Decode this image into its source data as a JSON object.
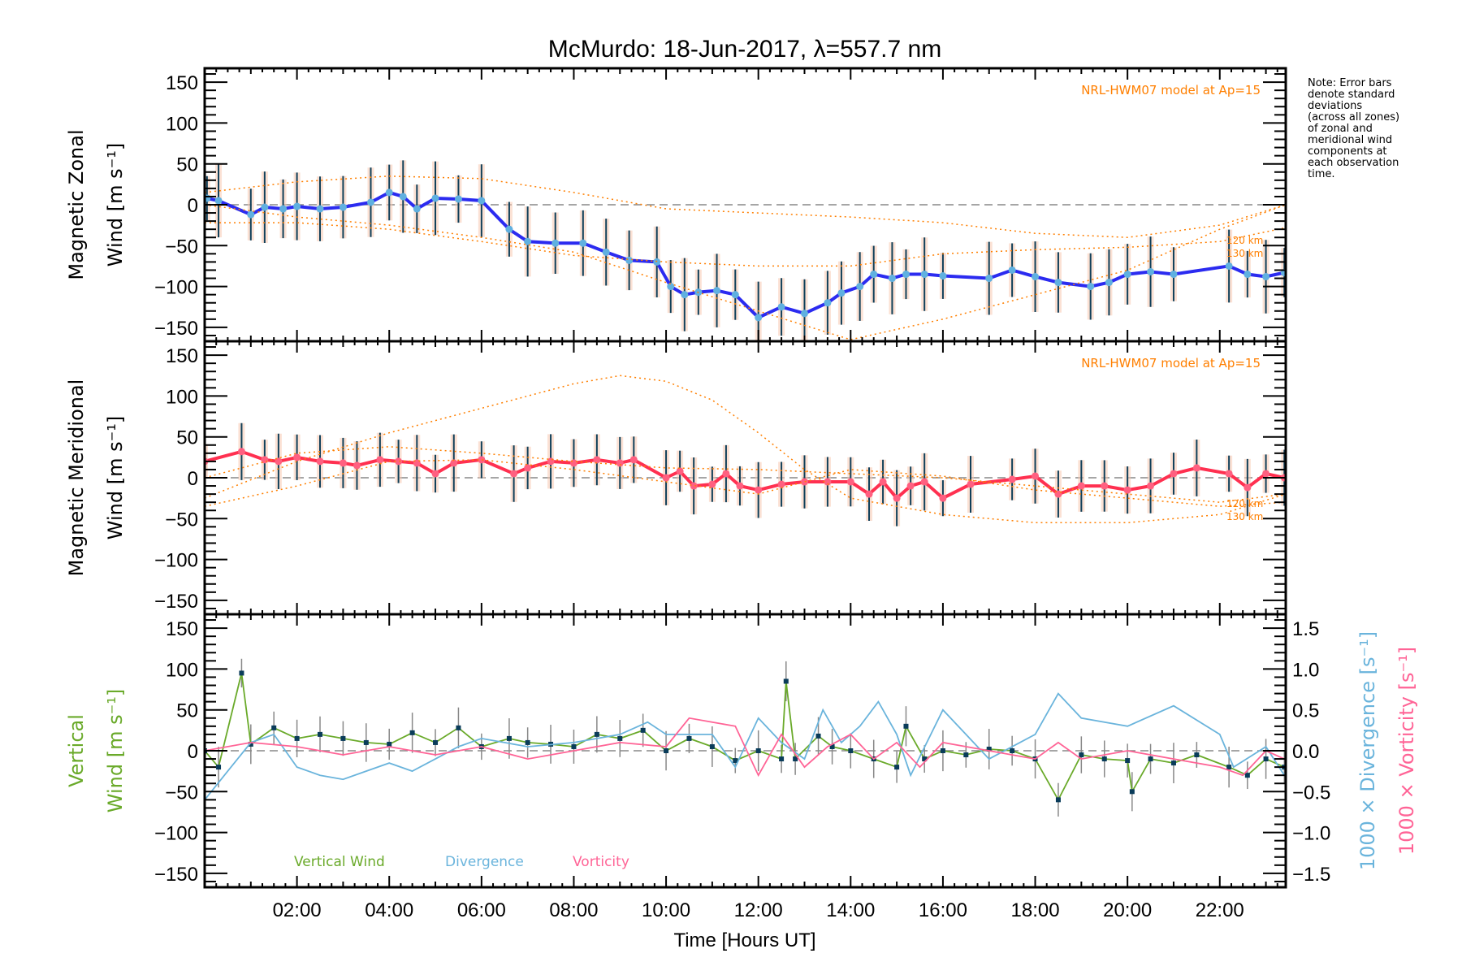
{
  "chart_data": {
    "type": "line",
    "title": "McMurdo: 18-Jun-2017, λ=557.7 nm",
    "xlabel": "Time [Hours UT]",
    "xlim": [
      0,
      23.43
    ],
    "x_ticks": [
      2,
      4,
      6,
      8,
      10,
      12,
      14,
      16,
      18,
      20,
      22
    ],
    "x_tick_labels": [
      "02:00",
      "04:00",
      "06:00",
      "08:00",
      "10:00",
      "12:00",
      "14:00",
      "16:00",
      "18:00",
      "20:00",
      "22:00"
    ],
    "note_lines": [
      "Note: Error bars",
      "denote standard",
      "deviations",
      "(across all zones)",
      "of zonal and",
      "meridional wind",
      "components at",
      "each observation",
      "time."
    ],
    "panels": [
      {
        "name": "zonal",
        "ylabel_line1": "Magnetic Zonal",
        "ylabel_line2": "Wind [m s⁻¹]",
        "ylim": [
          -167,
          167
        ],
        "y_ticks": [
          150,
          100,
          50,
          0,
          -50,
          -100,
          -150
        ],
        "y_tick_labels": [
          "150",
          "100",
          "50",
          "0",
          "−50",
          "−100",
          "−150"
        ],
        "model_label": "NRL-HWM07 model at Ap=15",
        "model_altitudes": [
          "120 km",
          "130 km"
        ],
        "series": [
          {
            "name": "Magnetic Zonal Wind",
            "color": "#2b2bf0",
            "x": [
              0.05,
              0.3,
              1.0,
              1.3,
              1.7,
              2.0,
              2.5,
              3.0,
              3.6,
              4.0,
              4.3,
              4.6,
              5.0,
              5.5,
              6.0,
              6.6,
              7.0,
              7.6,
              8.2,
              8.7,
              9.2,
              9.8,
              10.1,
              10.4,
              10.7,
              11.1,
              11.5,
              12.0,
              12.5,
              13.0,
              13.5,
              13.8,
              14.2,
              14.5,
              14.9,
              15.2,
              15.6,
              16.0,
              17.0,
              17.5,
              18.0,
              18.5,
              19.2,
              19.6,
              20.0,
              20.5,
              21.0,
              22.2,
              22.6,
              23.0,
              23.4
            ],
            "y": [
              8,
              5,
              -12,
              -3,
              -5,
              -2,
              -5,
              -3,
              3,
              15,
              10,
              -5,
              8,
              7,
              5,
              -30,
              -45,
              -47,
              -47,
              -58,
              -68,
              -70,
              -100,
              -110,
              -107,
              -105,
              -110,
              -138,
              -125,
              -133,
              -120,
              -108,
              -100,
              -85,
              -90,
              -85,
              -85,
              -87,
              -90,
              -80,
              -88,
              -95,
              -100,
              -95,
              -85,
              -82,
              -85,
              -75,
              -85,
              -88,
              -83
            ],
            "error": 45
          },
          {
            "name": "HWM07 120 km",
            "color": "#ff7f00",
            "style": "dotted",
            "x": [
              0,
              2,
              4,
              6,
              8,
              10,
              12,
              14,
              16,
              18,
              20,
              22,
              23.43
            ],
            "y": [
              15,
              28,
              35,
              32,
              15,
              -5,
              -10,
              -15,
              -22,
              -35,
              -40,
              -25,
              0
            ]
          },
          {
            "name": "HWM07 130 km",
            "color": "#ff7f00",
            "style": "dotted",
            "x": [
              0,
              2,
              4,
              6,
              8,
              10,
              12,
              14,
              16,
              18,
              20,
              22,
              23.43
            ],
            "y": [
              -22,
              -22,
              -30,
              -45,
              -62,
              -70,
              -75,
              -75,
              -60,
              -55,
              -52,
              -45,
              -28
            ]
          },
          {
            "name": "HWM07 outer",
            "color": "#ff7f00",
            "style": "dotted",
            "x": [
              0,
              2,
              4,
              6,
              8,
              10,
              12,
              14,
              16,
              18,
              20,
              22,
              23.43
            ],
            "y": [
              0,
              -15,
              -25,
              -40,
              -58,
              -95,
              -130,
              -165,
              -140,
              -110,
              -80,
              -30,
              0
            ]
          }
        ]
      },
      {
        "name": "meridional",
        "ylabel_line1": "Magnetic Meridional",
        "ylabel_line2": "Wind [m s⁻¹]",
        "ylim": [
          -167,
          167
        ],
        "y_ticks": [
          150,
          100,
          50,
          0,
          -50,
          -100,
          -150
        ],
        "y_tick_labels": [
          "150",
          "100",
          "50",
          "0",
          "−50",
          "−100",
          "−150"
        ],
        "model_label": "NRL-HWM07 model at Ap=15",
        "model_altitudes": [
          "120 km",
          "130 km"
        ],
        "series": [
          {
            "name": "Magnetic Meridional Wind",
            "color": "#ff3050",
            "x": [
              0.0,
              0.8,
              1.3,
              1.6,
              2.0,
              2.5,
              3.0,
              3.3,
              3.8,
              4.2,
              4.6,
              5.0,
              5.4,
              6.0,
              6.7,
              7.0,
              7.5,
              8.0,
              8.5,
              9.0,
              9.3,
              10.0,
              10.3,
              10.6,
              11.0,
              11.3,
              11.6,
              12.0,
              12.5,
              13.0,
              13.5,
              14.0,
              14.4,
              14.7,
              15.0,
              15.3,
              15.6,
              16.0,
              16.6,
              17.5,
              18.0,
              18.5,
              19.0,
              19.5,
              20.0,
              20.5,
              21.0,
              21.5,
              22.2,
              22.6,
              23.0,
              23.4
            ],
            "y": [
              20,
              32,
              22,
              20,
              25,
              20,
              18,
              15,
              22,
              20,
              18,
              5,
              18,
              22,
              5,
              12,
              20,
              18,
              22,
              18,
              22,
              0,
              8,
              -10,
              -8,
              5,
              -10,
              -15,
              -8,
              -5,
              -5,
              -5,
              -20,
              -5,
              -25,
              -10,
              -5,
              -25,
              -8,
              -2,
              2,
              -20,
              -10,
              -10,
              -15,
              -10,
              5,
              12,
              5,
              -12,
              5,
              0
            ],
            "error": 35
          },
          {
            "name": "HWM07 peak",
            "color": "#ff7f00",
            "style": "dotted",
            "x": [
              0,
              2,
              4,
              6,
              8,
              9,
              10,
              11,
              12,
              13,
              14,
              16,
              18,
              20,
              22,
              23.43
            ],
            "y": [
              -25,
              20,
              55,
              85,
              115,
              125,
              118,
              95,
              55,
              10,
              -25,
              -45,
              -55,
              -55,
              -45,
              -20
            ]
          },
          {
            "name": "HWM07 120 km",
            "color": "#ff7f00",
            "style": "dotted",
            "x": [
              0,
              2,
              4,
              6,
              8,
              10,
              12,
              14,
              16,
              18,
              20,
              22,
              23.43
            ],
            "y": [
              0,
              30,
              38,
              30,
              20,
              12,
              10,
              5,
              0,
              -10,
              -20,
              -30,
              -20
            ]
          },
          {
            "name": "HWM07 130 km",
            "color": "#ff7f00",
            "style": "dotted",
            "x": [
              0,
              2,
              4,
              6,
              8,
              10,
              12,
              14,
              16,
              18,
              20,
              22,
              23.43
            ],
            "y": [
              -35,
              -10,
              20,
              22,
              10,
              -5,
              -20,
              10,
              2,
              -15,
              -25,
              -35,
              -30
            ]
          }
        ]
      },
      {
        "name": "vertical",
        "ylabel_line1": "Vertical",
        "ylabel_line2": "Wind [m s⁻¹]",
        "ylabel_color": "#6aaa2a",
        "ylim": [
          -167,
          167
        ],
        "y_ticks": [
          150,
          100,
          50,
          0,
          -50,
          -100,
          -150
        ],
        "y_tick_labels": [
          "150",
          "100",
          "50",
          "0",
          "−50",
          "−100",
          "−150"
        ],
        "right_ylim": [
          -1.67,
          1.67
        ],
        "right_y_ticks": [
          1.5,
          1.0,
          0.5,
          0.0,
          -0.5,
          -1.0,
          -1.5
        ],
        "right_y_tick_labels": [
          "1.5",
          "1.0",
          "0.5",
          "0.0",
          "−0.5",
          "−1.0",
          "−1.5"
        ],
        "right_ylabel_div": "1000 × Divergence [s⁻¹]",
        "right_ylabel_vort": "1000 × Vorticity [s⁻¹]",
        "legend": [
          {
            "label": "Vertical Wind",
            "color": "#6aaa2a"
          },
          {
            "label": "Divergence",
            "color": "#6ab4dc"
          },
          {
            "label": "Vorticity",
            "color": "#ff6496"
          }
        ],
        "legend_position": "bottom-left",
        "series": [
          {
            "name": "Vertical Wind",
            "color": "#6aaa2a",
            "axis": "left",
            "x": [
              0.0,
              0.3,
              0.8,
              1.0,
              1.5,
              2.0,
              2.5,
              3.0,
              3.5,
              4.0,
              4.5,
              5.0,
              5.5,
              6.0,
              6.6,
              7.0,
              7.5,
              8.0,
              8.5,
              9.0,
              9.5,
              10.0,
              10.5,
              11.0,
              11.5,
              12.0,
              12.5,
              12.6,
              12.8,
              13.3,
              13.6,
              14.0,
              14.5,
              15.0,
              15.2,
              15.6,
              16.0,
              16.5,
              17.0,
              17.5,
              18.0,
              18.5,
              19.0,
              19.5,
              20.0,
              20.1,
              20.5,
              21.0,
              21.5,
              22.2,
              22.6,
              23.0,
              23.4
            ],
            "y": [
              0,
              -20,
              95,
              8,
              28,
              15,
              20,
              15,
              10,
              8,
              22,
              10,
              28,
              5,
              15,
              10,
              8,
              5,
              20,
              15,
              25,
              0,
              15,
              5,
              -12,
              0,
              -10,
              85,
              -10,
              18,
              5,
              0,
              -10,
              -20,
              30,
              -10,
              0,
              -5,
              2,
              0,
              -10,
              -60,
              -5,
              -10,
              -12,
              -50,
              -10,
              -15,
              -5,
              -20,
              -30,
              -10,
              -20
            ],
            "error": 25
          },
          {
            "name": "Divergence",
            "color": "#6ab4dc",
            "axis": "right",
            "x": [
              0.0,
              0.5,
              1.0,
              1.5,
              2.0,
              2.5,
              3.0,
              3.5,
              4.0,
              4.5,
              5.0,
              5.5,
              6.0,
              6.5,
              7.0,
              8.0,
              9.0,
              9.6,
              10.0,
              11.0,
              11.5,
              12.0,
              12.5,
              13.0,
              13.4,
              13.8,
              14.2,
              14.6,
              15.0,
              15.3,
              16.0,
              16.5,
              17.0,
              18.0,
              18.5,
              19.0,
              20.0,
              21.0,
              22.0,
              22.3,
              23.0,
              23.4
            ],
            "y": [
              -0.6,
              -0.25,
              0.1,
              0.2,
              -0.2,
              -0.3,
              -0.35,
              -0.25,
              -0.15,
              -0.25,
              -0.1,
              0.05,
              0.15,
              0.1,
              0.05,
              0.1,
              0.2,
              0.35,
              0.2,
              0.2,
              -0.2,
              0.4,
              0.1,
              -0.1,
              0.5,
              0.1,
              0.3,
              0.6,
              0.2,
              -0.3,
              0.5,
              0.2,
              -0.1,
              0.2,
              0.7,
              0.4,
              0.3,
              0.55,
              0.2,
              -0.2,
              0.05,
              -0.3
            ]
          },
          {
            "name": "Vorticity",
            "color": "#ff6496",
            "axis": "right",
            "x": [
              0.0,
              1.0,
              2.0,
              3.0,
              4.0,
              5.0,
              6.0,
              7.0,
              8.0,
              9.0,
              10.0,
              10.5,
              11.5,
              12.0,
              12.5,
              13.0,
              13.5,
              14.0,
              14.5,
              15.0,
              15.5,
              16.0,
              17.0,
              18.0,
              18.5,
              19.0,
              20.0,
              21.0,
              22.0,
              22.5,
              23.0,
              23.4
            ],
            "y": [
              0.0,
              0.1,
              0.05,
              -0.05,
              0.05,
              -0.05,
              0.05,
              -0.1,
              0.0,
              0.1,
              0.05,
              0.4,
              0.3,
              -0.3,
              0.2,
              -0.2,
              0.05,
              0.2,
              -0.1,
              0.1,
              -0.2,
              0.1,
              0.0,
              -0.1,
              0.1,
              -0.1,
              0.0,
              -0.1,
              -0.2,
              -0.3,
              0.0,
              -0.1
            ]
          }
        ]
      }
    ]
  }
}
